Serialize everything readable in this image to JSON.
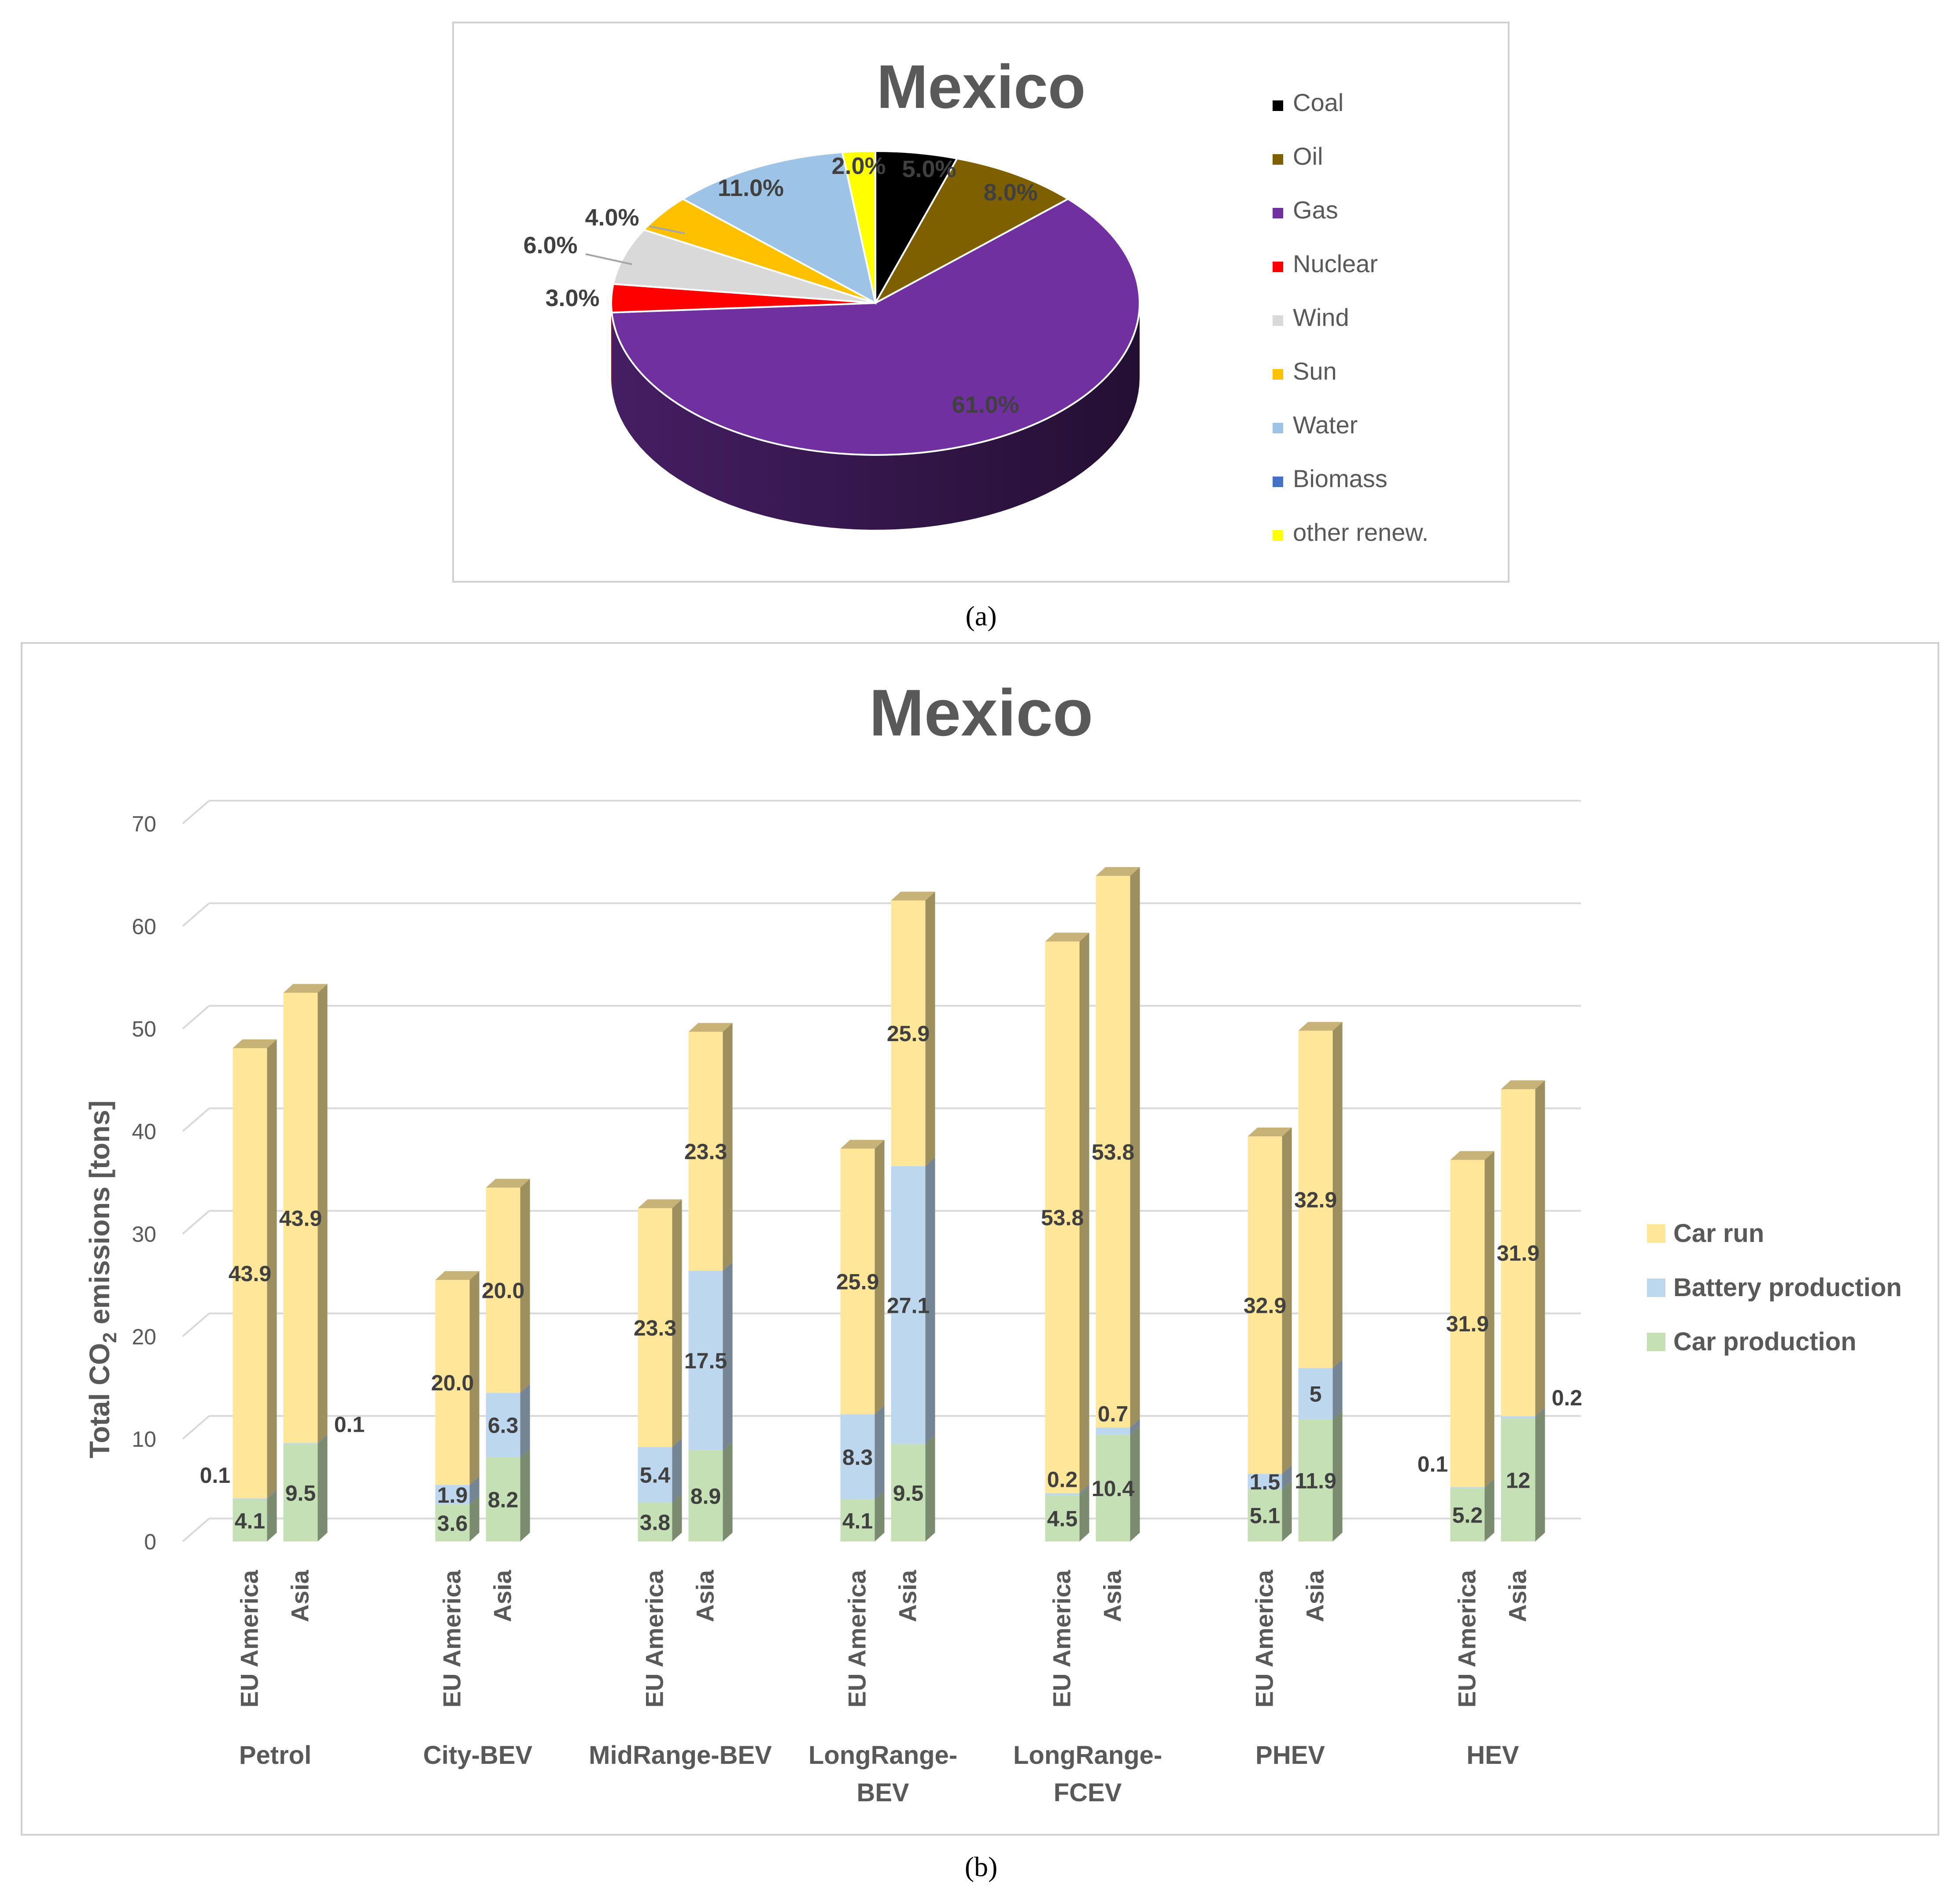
{
  "captions": {
    "a": "(a)",
    "b": "(b)"
  },
  "chart_data": [
    {
      "type": "pie",
      "title": "Mexico",
      "categories": [
        "Coal",
        "Oil",
        "Gas",
        "Nuclear",
        "Wind",
        "Sun",
        "Water",
        "Biomass",
        "other renew."
      ],
      "values": [
        5.0,
        8.0,
        61.0,
        3.0,
        6.0,
        4.0,
        11.0,
        0.0,
        2.0
      ],
      "value_labels": [
        "5.0%",
        "8.0%",
        "61.0%",
        "3.0%",
        "6.0%",
        "4.0%",
        "11.0%",
        "",
        "2.0%"
      ],
      "colors": [
        "#000000",
        "#7f6000",
        "#7030a0",
        "#ff0000",
        "#d9d9d9",
        "#ffc000",
        "#9dc3e6",
        "#4472c4",
        "#ffff00"
      ],
      "style": "3d",
      "legend": "right"
    },
    {
      "type": "bar",
      "stacked": true,
      "style": "3d",
      "title": "Mexico",
      "ylabel": "Total CO2 emissions [tons]",
      "ylabel_parts": [
        "Total CO",
        "2",
        " emissions [tons]"
      ],
      "ylim": [
        0,
        70
      ],
      "yticks": [
        0,
        10,
        20,
        30,
        40,
        50,
        60,
        70
      ],
      "grid": true,
      "legend": "right",
      "groups": [
        "Petrol",
        "City-BEV",
        "MidRange-BEV",
        "LongRange-BEV",
        "LongRange-FCEV",
        "PHEV",
        "HEV"
      ],
      "group_label_lines": [
        [
          "Petrol"
        ],
        [
          "City-BEV"
        ],
        [
          "MidRange-BEV"
        ],
        [
          "LongRange-",
          "BEV"
        ],
        [
          "LongRange-",
          "FCEV"
        ],
        [
          "PHEV"
        ],
        [
          "HEV"
        ]
      ],
      "categories": [
        "EU America",
        "Asia"
      ],
      "series": [
        {
          "name": "Car production",
          "color": "#c5e0b4",
          "values": [
            [
              4.1,
              9.5
            ],
            [
              3.6,
              8.2
            ],
            [
              3.8,
              8.9
            ],
            [
              4.1,
              9.5
            ],
            [
              4.5,
              10.4
            ],
            [
              5.1,
              11.9
            ],
            [
              5.2,
              12
            ]
          ],
          "labels": [
            [
              "4.1",
              "9.5"
            ],
            [
              "3.6",
              "8.2"
            ],
            [
              "3.8",
              "8.9"
            ],
            [
              "4.1",
              "9.5"
            ],
            [
              "4.5",
              "10.4"
            ],
            [
              "5.1",
              "11.9"
            ],
            [
              "5.2",
              "12"
            ]
          ]
        },
        {
          "name": "Battery production",
          "color": "#bdd7ee",
          "values": [
            [
              0.1,
              0.1
            ],
            [
              1.9,
              6.3
            ],
            [
              5.4,
              17.5
            ],
            [
              8.3,
              27.1
            ],
            [
              0.2,
              0.7
            ],
            [
              1.5,
              5
            ],
            [
              0.1,
              0.2
            ]
          ],
          "labels": [
            [
              "0.1",
              "0.1"
            ],
            [
              "1.9",
              "6.3"
            ],
            [
              "5.4",
              "17.5"
            ],
            [
              "8.3",
              "27.1"
            ],
            [
              "0.2",
              "0.7"
            ],
            [
              "1.5",
              "5"
            ],
            [
              "0.1",
              "0.2"
            ]
          ]
        },
        {
          "name": "Car run",
          "color": "#ffe699",
          "values": [
            [
              43.9,
              43.9
            ],
            [
              20.0,
              20.0
            ],
            [
              23.3,
              23.3
            ],
            [
              25.9,
              25.9
            ],
            [
              53.8,
              53.8
            ],
            [
              32.9,
              32.9
            ],
            [
              31.9,
              31.9
            ]
          ],
          "labels": [
            [
              "43.9",
              "43.9"
            ],
            [
              "20.0",
              "20.0"
            ],
            [
              "23.3",
              "23.3"
            ],
            [
              "25.9",
              "25.9"
            ],
            [
              "53.8",
              "53.8"
            ],
            [
              "32.9",
              "32.9"
            ],
            [
              "31.9",
              "31.9"
            ]
          ]
        }
      ],
      "legend_order": [
        "Car run",
        "Battery production",
        "Car production"
      ]
    }
  ]
}
